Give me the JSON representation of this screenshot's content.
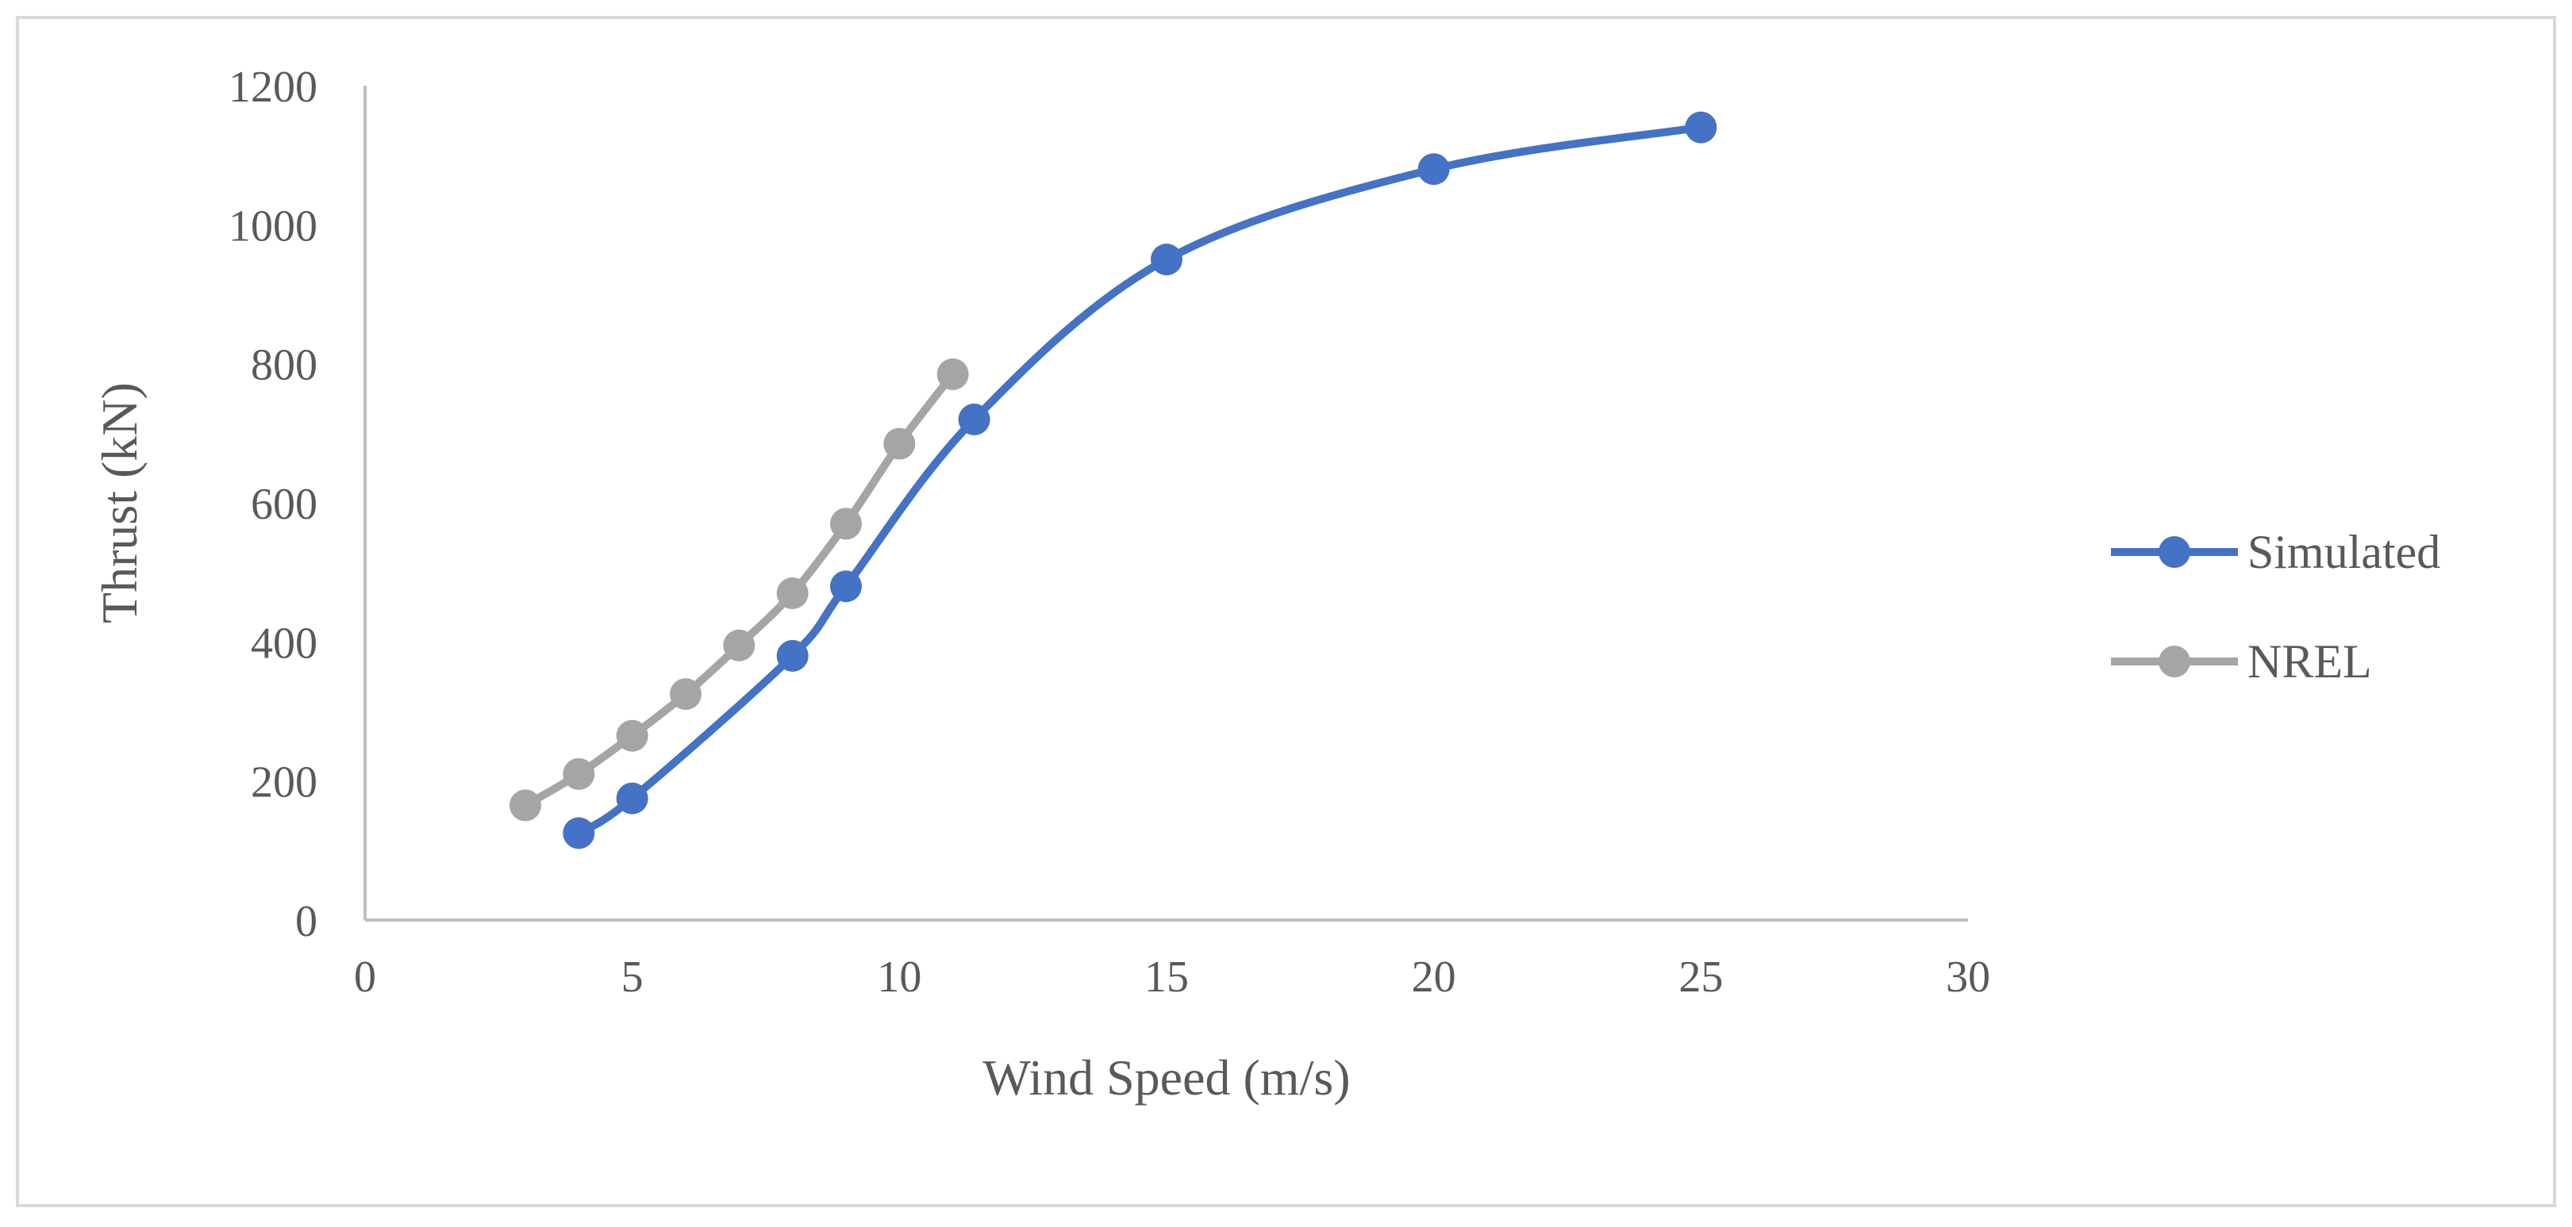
{
  "chart_data": {
    "type": "line",
    "title": "",
    "xlabel": "Wind Speed (m/s)",
    "ylabel": "Thrust (kN)",
    "xlim": [
      0,
      30
    ],
    "ylim": [
      0,
      1200
    ],
    "xticks": [
      0,
      5,
      10,
      15,
      20,
      25,
      30
    ],
    "yticks": [
      0,
      200,
      400,
      600,
      800,
      1000,
      1200
    ],
    "grid": false,
    "legend_position": "right",
    "series": [
      {
        "name": "Simulated",
        "color": "#4472C4",
        "x": [
          4,
          5,
          8,
          9,
          11.4,
          15,
          20,
          25
        ],
        "y": [
          125,
          175,
          380,
          480,
          720,
          950,
          1080,
          1140
        ]
      },
      {
        "name": "NREL",
        "color": "#A5A5A5",
        "x": [
          3,
          4,
          5,
          6,
          7,
          8,
          9,
          10,
          11
        ],
        "y": [
          165,
          210,
          265,
          325,
          395,
          470,
          570,
          685,
          785
        ]
      }
    ]
  }
}
